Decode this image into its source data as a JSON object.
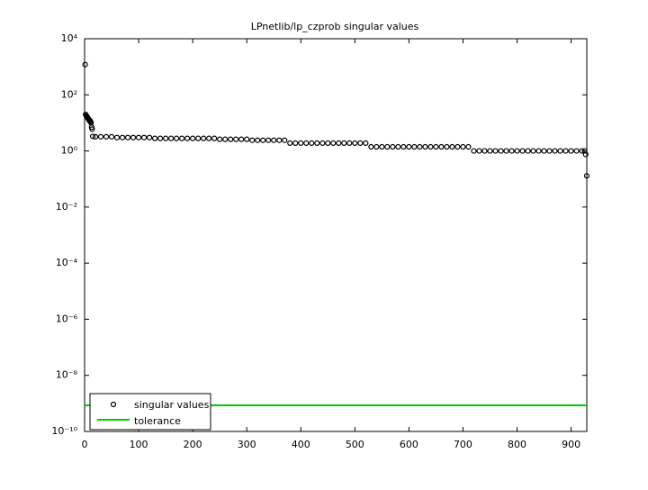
{
  "chart_data": {
    "type": "scatter",
    "title": "LPnetlib/lp_czprob singular values",
    "yscale": "log",
    "xlim": [
      0,
      929
    ],
    "xticks": [
      0,
      100,
      200,
      300,
      400,
      500,
      600,
      700,
      800,
      900
    ],
    "ylim": [
      1e-10,
      10000
    ],
    "yticks": [
      {
        "value": 10000,
        "label": "10⁴"
      },
      {
        "value": 100,
        "label": "10²"
      },
      {
        "value": 1,
        "label": "10⁰"
      },
      {
        "value": 0.01,
        "label": "10⁻²"
      },
      {
        "value": 0.0001,
        "label": "10⁻⁴"
      },
      {
        "value": 1e-06,
        "label": "10⁻⁶"
      },
      {
        "value": 1e-08,
        "label": "10⁻⁸"
      },
      {
        "value": 1e-10,
        "label": "10⁻¹⁰"
      }
    ],
    "legend": "lower left",
    "series": [
      {
        "name": "singular values",
        "color": "#000000",
        "x": [
          1,
          2,
          3,
          4,
          5,
          6,
          7,
          8,
          9,
          10,
          11,
          12,
          13,
          14,
          15,
          20,
          30,
          40,
          50,
          60,
          70,
          80,
          90,
          100,
          110,
          120,
          130,
          140,
          150,
          160,
          170,
          180,
          190,
          200,
          210,
          220,
          230,
          240,
          250,
          260,
          270,
          280,
          290,
          300,
          310,
          320,
          330,
          340,
          350,
          360,
          370,
          380,
          390,
          400,
          410,
          420,
          430,
          440,
          450,
          460,
          470,
          480,
          490,
          500,
          510,
          520,
          530,
          540,
          550,
          560,
          570,
          580,
          590,
          600,
          610,
          620,
          630,
          640,
          650,
          660,
          670,
          680,
          690,
          700,
          710,
          720,
          730,
          740,
          750,
          760,
          770,
          780,
          790,
          800,
          810,
          820,
          830,
          840,
          850,
          860,
          870,
          880,
          890,
          900,
          910,
          920,
          925,
          927,
          929
        ],
        "values": [
          1200,
          20,
          18,
          17,
          16,
          15,
          14,
          13,
          12,
          12,
          11,
          10,
          7,
          6,
          3.3,
          3.2,
          3.2,
          3.2,
          3.2,
          3.0,
          3.0,
          3.0,
          3.0,
          3.0,
          3.0,
          3.0,
          2.8,
          2.8,
          2.8,
          2.8,
          2.8,
          2.8,
          2.8,
          2.8,
          2.8,
          2.8,
          2.8,
          2.8,
          2.6,
          2.6,
          2.6,
          2.6,
          2.6,
          2.6,
          2.4,
          2.4,
          2.4,
          2.4,
          2.4,
          2.4,
          2.4,
          1.9,
          1.9,
          1.9,
          1.9,
          1.9,
          1.9,
          1.9,
          1.9,
          1.9,
          1.9,
          1.9,
          1.9,
          1.9,
          1.9,
          1.9,
          1.4,
          1.4,
          1.4,
          1.4,
          1.4,
          1.4,
          1.4,
          1.4,
          1.4,
          1.4,
          1.4,
          1.4,
          1.4,
          1.4,
          1.4,
          1.4,
          1.4,
          1.4,
          1.4,
          1.0,
          1.0,
          1.0,
          1.0,
          1.0,
          1.0,
          1.0,
          1.0,
          1.0,
          1.0,
          1.0,
          1.0,
          1.0,
          1.0,
          1.0,
          1.0,
          1.0,
          1.0,
          1.0,
          1.0,
          1.0,
          1.0,
          0.75,
          0.13
        ]
      },
      {
        "name": "tolerance",
        "color": "#00cc00",
        "values": [
          8.5e-10
        ]
      }
    ]
  }
}
